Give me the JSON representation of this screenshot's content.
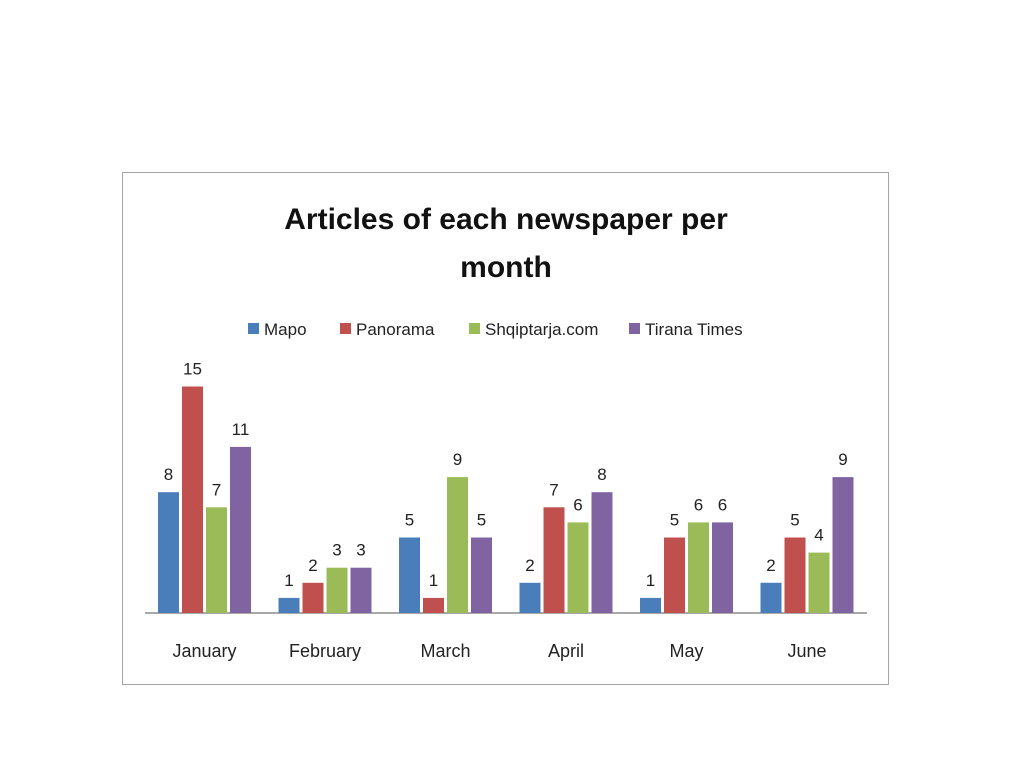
{
  "chart_data": {
    "type": "bar",
    "title": "Articles of each newspaper per month",
    "categories": [
      "January",
      "February",
      "March",
      "April",
      "May",
      "June"
    ],
    "series": [
      {
        "name": "Mapo",
        "values": [
          8,
          1,
          5,
          2,
          1,
          2
        ],
        "color": "#4a7ebb"
      },
      {
        "name": "Panorama",
        "values": [
          15,
          2,
          1,
          7,
          5,
          5
        ],
        "color": "#c0504d"
      },
      {
        "name": "Shqiptarja.com",
        "values": [
          7,
          3,
          9,
          6,
          6,
          4
        ],
        "color": "#9bbb59"
      },
      {
        "name": "Tirana Times",
        "values": [
          11,
          3,
          5,
          8,
          6,
          9
        ],
        "color": "#8064a2"
      }
    ],
    "legend_position": "top",
    "grid": false,
    "ylim": [
      0,
      15
    ]
  }
}
